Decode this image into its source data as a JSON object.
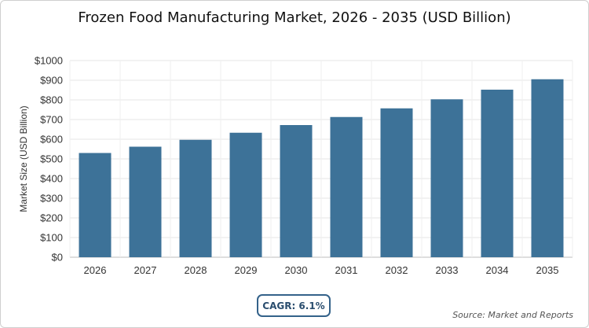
{
  "chart_data": {
    "type": "bar",
    "title": "Frozen Food Manufacturing Market, 2026 - 2035 (USD Billion)",
    "ylabel": "Market Size (USD Billion)",
    "xlabel": "",
    "categories": [
      "2026",
      "2027",
      "2028",
      "2029",
      "2030",
      "2031",
      "2032",
      "2033",
      "2034",
      "2035"
    ],
    "values": [
      530,
      562,
      597,
      633,
      672,
      713,
      757,
      803,
      852,
      905
    ],
    "ylim": [
      0,
      1000
    ],
    "y_ticks": [
      0,
      100,
      200,
      300,
      400,
      500,
      600,
      700,
      800,
      900,
      1000
    ],
    "y_tick_labels": [
      "$0",
      "$100",
      "$200",
      "$300",
      "$400",
      "$500",
      "$600",
      "$700",
      "$800",
      "$900",
      "$1000"
    ],
    "grid": true,
    "bar_color": "#3d7298"
  },
  "cagr_label": "CAGR: 6.1%",
  "source_label": "Source: Market and Reports"
}
